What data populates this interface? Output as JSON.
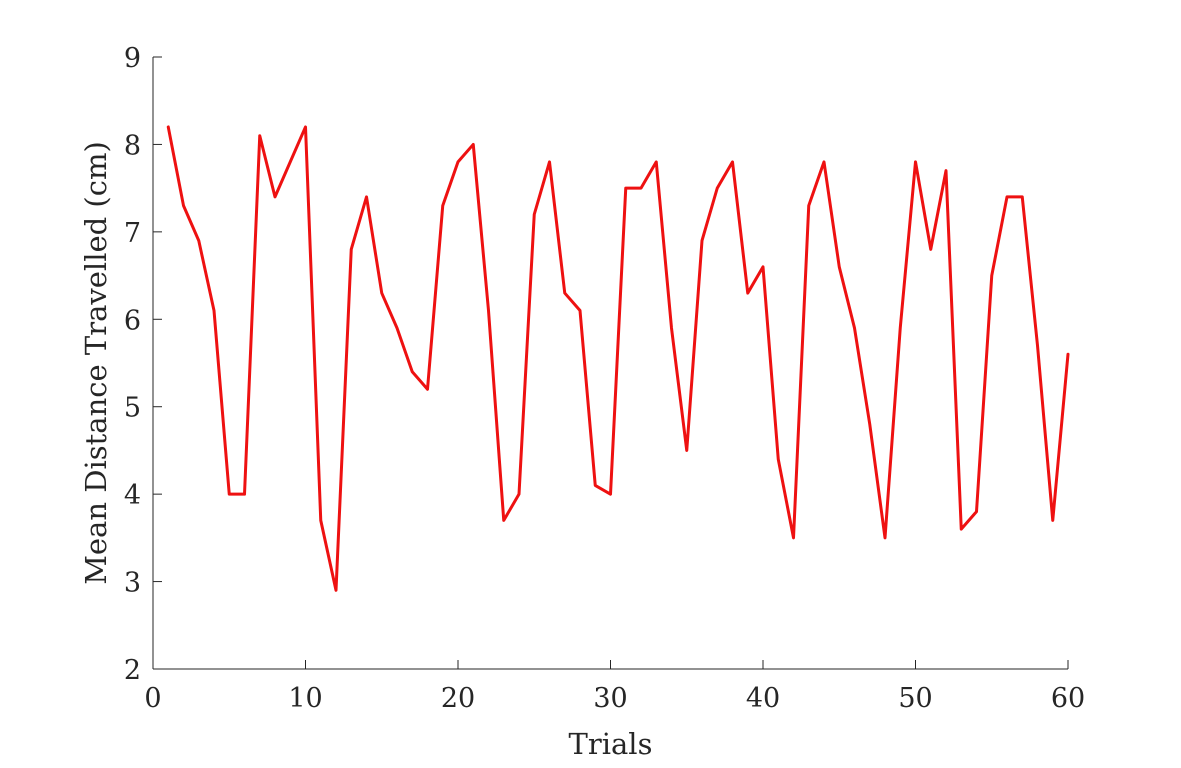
{
  "chart_data": {
    "type": "line",
    "title": "",
    "xlabel": "Trials",
    "ylabel": "Mean Distance Travelled (cm)",
    "xlim": [
      0,
      60
    ],
    "ylim": [
      2,
      9
    ],
    "xticks": [
      0,
      10,
      20,
      30,
      40,
      50,
      60
    ],
    "yticks": [
      2,
      3,
      4,
      5,
      6,
      7,
      8,
      9
    ],
    "grid": false,
    "legend": "none",
    "series": [
      {
        "color": "#ee1111",
        "x": [
          1,
          2,
          3,
          4,
          5,
          6,
          7,
          8,
          9,
          10,
          11,
          12,
          13,
          14,
          15,
          16,
          17,
          18,
          19,
          20,
          21,
          22,
          23,
          24,
          25,
          26,
          27,
          28,
          29,
          30,
          31,
          32,
          33,
          34,
          35,
          36,
          37,
          38,
          39,
          40,
          41,
          42,
          43,
          44,
          45,
          46,
          47,
          48,
          49,
          50,
          51,
          52,
          53,
          54,
          55,
          56,
          57,
          58,
          59,
          60
        ],
        "y": [
          8.2,
          7.3,
          6.9,
          6.1,
          4.0,
          4.0,
          8.1,
          7.4,
          7.8,
          8.2,
          3.7,
          2.9,
          6.8,
          7.4,
          6.3,
          5.9,
          5.4,
          5.2,
          7.3,
          7.8,
          8.0,
          6.1,
          3.7,
          4.0,
          7.2,
          7.8,
          6.3,
          6.1,
          4.1,
          4.0,
          7.5,
          7.5,
          7.8,
          5.9,
          4.5,
          6.9,
          7.5,
          7.8,
          6.3,
          6.6,
          4.4,
          3.5,
          7.3,
          7.8,
          6.6,
          5.9,
          4.8,
          3.5,
          5.9,
          7.8,
          6.8,
          7.7,
          3.6,
          3.8,
          6.5,
          7.4,
          7.4,
          5.7,
          3.7,
          5.6
        ]
      }
    ]
  }
}
